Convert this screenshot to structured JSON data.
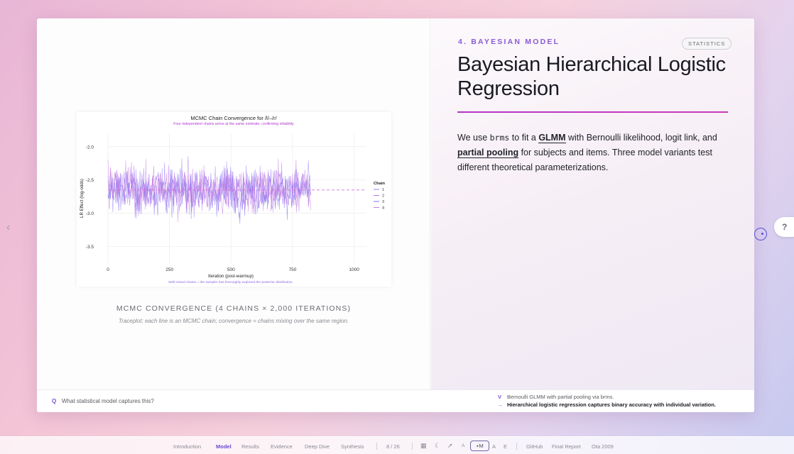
{
  "slide": {
    "section_label": "4. BAYESIAN MODEL",
    "badge": "STATISTICS",
    "title": "Bayesian Hierarchical Logistic Regression",
    "body": {
      "p1": "We use ",
      "code": "brms",
      "p2": " to fit a ",
      "term1": "GLMM",
      "p3": " with Bernoulli likelihood, logit link, and ",
      "term2": "partial pooling",
      "p4": " for subjects and items. Three model variants test different theoretical parameterizations."
    },
    "figure_caption": "MCMC CONVERGENCE (4 CHAINS × 2,000 ITERATIONS)",
    "figure_note": "Traceplot: each line is an MCMC chain; convergence = chains mixing over the same region."
  },
  "footer": {
    "q_mark": "Q",
    "question": "What statistical model captures this?",
    "v_mark": "V",
    "verdict": "Bernoulli GLMM with partial pooling via brms.",
    "a_mark": "→",
    "answer": "Hierarchical logistic regression captures binary accuracy with individual variation."
  },
  "controls": {
    "prev_arrow": "‹",
    "help": "?"
  },
  "bottom_nav": {
    "items": [
      "Introduction",
      "Model",
      "Results",
      "Evidence",
      "Deep Dive",
      "Synthesis"
    ],
    "active": "Model",
    "page": "8 / 26",
    "icons": [
      "grid-icon",
      "moon-icon",
      "pointer-icon"
    ],
    "font_small": "A",
    "font_mode": "+M",
    "font_large": "A",
    "e_label": "E",
    "links": [
      "GitHub",
      "Final Report",
      "Ota 2009"
    ]
  },
  "chart_data": {
    "type": "line",
    "title": "MCMC Chain Convergence for /l/–/r/",
    "subtitle": "Four independent chains arrive at the same estimate, confirming reliability",
    "xlabel": "Iteration (post-warmup)",
    "ylabel": "LR Effect (log-odds)",
    "footnote": "Well-mixed chains = the sampler has thoroughly explored the posterior distribution.",
    "xlim": [
      0,
      1050
    ],
    "ylim": [
      -3.75,
      -1.8
    ],
    "xticks": [
      0,
      250,
      500,
      750,
      1000
    ],
    "yticks": [
      -2.0,
      -2.5,
      -3.0,
      -3.5
    ],
    "xtick_labels": [
      "0",
      "250",
      "500",
      "750",
      "1000"
    ],
    "ytick_labels": [
      "-2.0",
      "-2.5",
      "-3.0",
      "-3.5"
    ],
    "reference_line": -2.65,
    "legend_title": "Chain",
    "legend_position": "right",
    "grid": true,
    "iterations": 825,
    "series": [
      {
        "name": "1",
        "color": "#9b7cf5",
        "center": -2.65,
        "spread": 0.28
      },
      {
        "name": "2",
        "color": "#b877e6",
        "center": -2.64,
        "spread": 0.28
      },
      {
        "name": "3",
        "color": "#7d6ff0",
        "center": -2.66,
        "spread": 0.27
      },
      {
        "name": "4",
        "color": "#c67ae0",
        "center": -2.65,
        "spread": 0.28
      }
    ],
    "colors": {
      "reference": "#d46fd0",
      "grid": "#ececec",
      "subtitle": "#b13ad1"
    }
  }
}
